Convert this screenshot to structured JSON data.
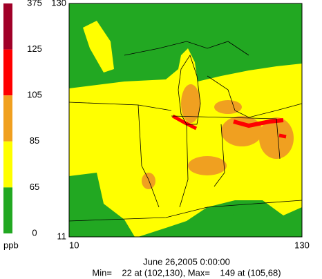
{
  "colorbar": {
    "ticks": [
      375,
      125,
      105,
      85,
      65,
      0
    ],
    "colors": [
      "#a00028",
      "#ff0000",
      "#f0a020",
      "#ffff00",
      "#22a822"
    ],
    "unit": "ppb"
  },
  "axes": {
    "y_top": 130,
    "y_bottom": 11,
    "x_left": 10,
    "x_right": 130
  },
  "title": "June 26,2005 0:00:00",
  "stats": "Min=    22 at (102,130), Max=    149 at (105,68)"
}
